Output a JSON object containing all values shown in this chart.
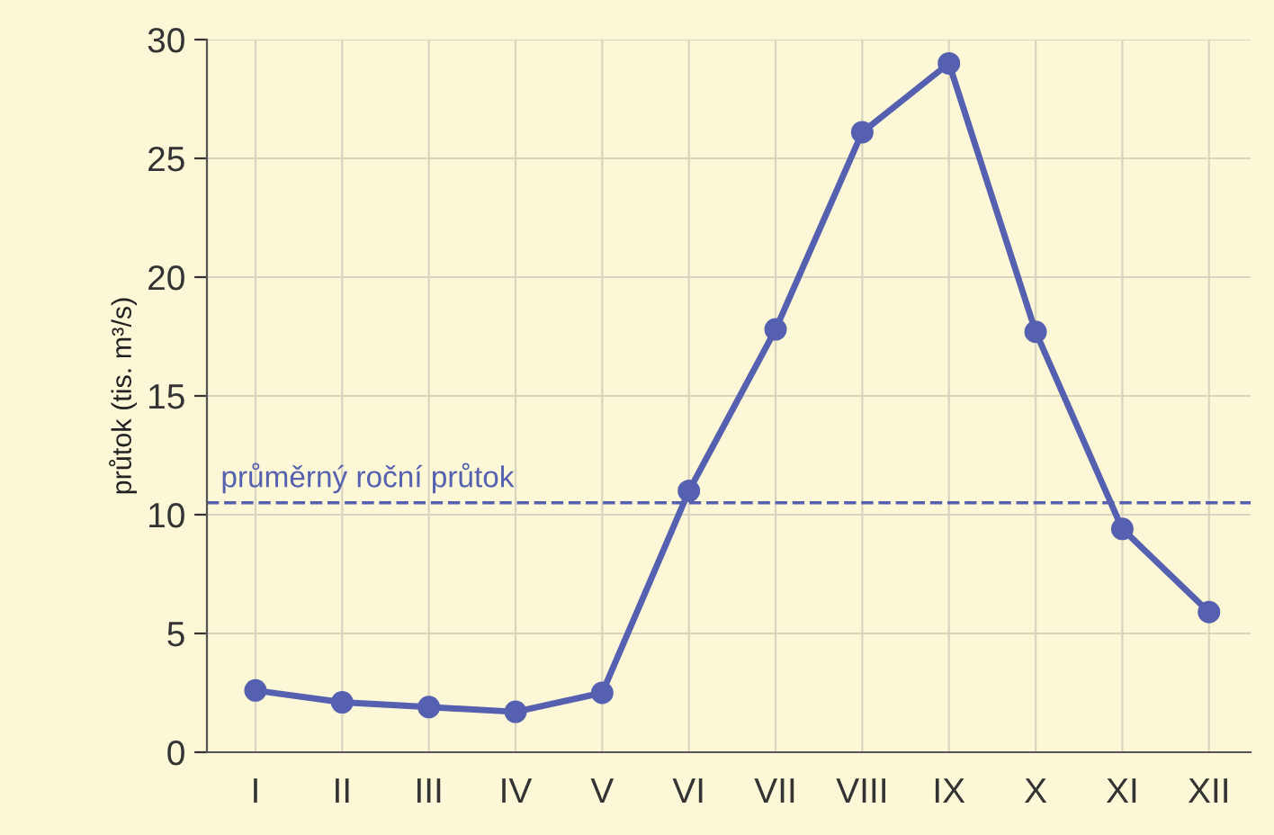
{
  "chart_data": {
    "type": "line",
    "ylabel": "průtok (tis. m³/s)",
    "categories": [
      "I",
      "II",
      "III",
      "IV",
      "V",
      "VI",
      "VII",
      "VIII",
      "IX",
      "X",
      "XI",
      "XII"
    ],
    "series": [
      {
        "color": "#5560b0",
        "values": [
          2.6,
          2.1,
          1.9,
          1.7,
          2.5,
          11.0,
          17.8,
          26.1,
          29.0,
          17.7,
          9.4,
          5.9
        ]
      }
    ],
    "ylim": [
      0,
      30
    ],
    "yticks": [
      0,
      5,
      10,
      15,
      20,
      25,
      30
    ],
    "ref_lines": [
      {
        "axis": "y",
        "value": 10.5,
        "label": "průměrný roční průtok",
        "color": "#5560b0",
        "line_style": "dashed"
      }
    ],
    "grid": true,
    "marker": "circle",
    "line_style": "solid"
  }
}
